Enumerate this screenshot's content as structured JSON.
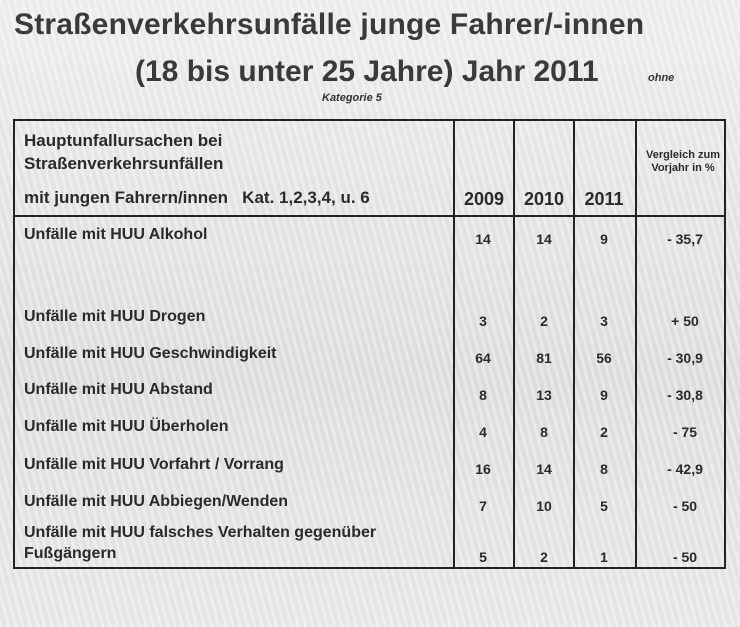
{
  "title_line1": "Straßenverkehrsunfälle junge Fahrer/-innen",
  "title_line2": "(18 bis unter 25 Jahre) Jahr 2011",
  "title_ohne": "ohne",
  "title_kategorie": "Kategorie 5",
  "header": {
    "cause_line1": "Hauptunfallursachen bei",
    "cause_line2": "Straßenverkehrsunfällen",
    "cause_line3": "mit jungen Fahrern/innen   Kat. 1,2,3,4, u. 6",
    "years": [
      "2009",
      "2010",
      "2011"
    ],
    "comparison": "Vergleich zum Vorjahr in %"
  },
  "rows": [
    {
      "label": "Unfälle mit HUU Alkohol",
      "v2009": "14",
      "v2010": "14",
      "v2011": "9",
      "change": "- 35,7"
    },
    {
      "label": "Unfälle mit HUU Drogen",
      "v2009": "3",
      "v2010": "2",
      "v2011": "3",
      "change": "+ 50"
    },
    {
      "label": "Unfälle mit HUU Geschwindigkeit",
      "v2009": "64",
      "v2010": "81",
      "v2011": "56",
      "change": "- 30,9"
    },
    {
      "label": "Unfälle mit HUU Abstand",
      "v2009": "8",
      "v2010": "13",
      "v2011": "9",
      "change": "- 30,8"
    },
    {
      "label": "Unfälle mit HUU Überholen",
      "v2009": "4",
      "v2010": "8",
      "v2011": "2",
      "change": "- 75"
    },
    {
      "label": "Unfälle mit HUU Vorfahrt / Vorrang",
      "v2009": "16",
      "v2010": "14",
      "v2011": "8",
      "change": "- 42,9"
    },
    {
      "label": "Unfälle mit HUU Abbiegen/Wenden",
      "v2009": "7",
      "v2010": "10",
      "v2011": "5",
      "change": "- 50"
    },
    {
      "label": "Unfälle mit HUU falsches Verhalten gegenüber",
      "label2": "Fußgängern",
      "v2009": "5",
      "v2010": "2",
      "v2011": "1",
      "change": "- 50"
    }
  ]
}
